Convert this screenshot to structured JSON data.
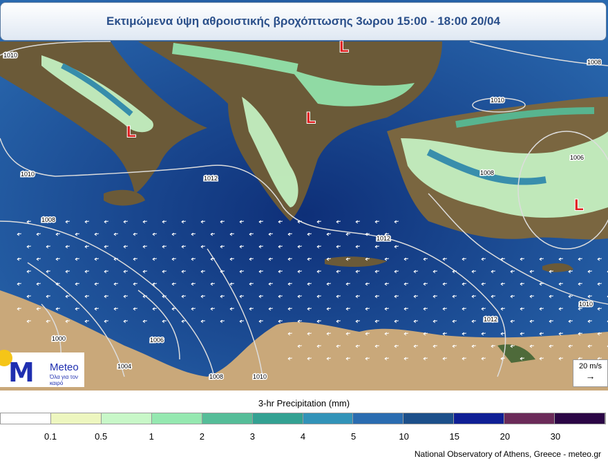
{
  "title": "Εκτιμώμενα ύψη αθροιστικής βροχόπτωσης 3ωρου 15:00 - 18:00 20/04",
  "isobars": [
    {
      "label": "1010"
    },
    {
      "label": "1008"
    },
    {
      "label": "1010"
    },
    {
      "label": "1006"
    },
    {
      "label": "1008"
    },
    {
      "label": "1010"
    },
    {
      "label": "1012"
    },
    {
      "label": "1008"
    },
    {
      "label": "1012"
    },
    {
      "label": "1010"
    },
    {
      "label": "1012"
    },
    {
      "label": "1006"
    },
    {
      "label": "1000"
    },
    {
      "label": "1004"
    },
    {
      "label": "1008"
    },
    {
      "label": "1010"
    }
  ],
  "low_marker": "L",
  "logo": {
    "name": "Meteo",
    "tagline": "Όλα για τον καιρό"
  },
  "wind_scale": {
    "label": "20 m/s",
    "arrow": "→"
  },
  "legend": {
    "title": "3-hr Precipitation (mm)",
    "colors": [
      "#ffffff",
      "#edf6bf",
      "#c8f7c8",
      "#95e8b0",
      "#55bd98",
      "#33a192",
      "#3293b8",
      "#2a6cb0",
      "#1c4f8a",
      "#0f1f95",
      "#6a2a58",
      "#2b0645"
    ],
    "ticks": [
      "0.1",
      "0.5",
      "1",
      "2",
      "3",
      "4",
      "5",
      "10",
      "15",
      "20",
      "30"
    ]
  },
  "credit": "National Observatory of Athens, Greece - meteo.gr",
  "colors": {
    "sea": "#1d4f96",
    "land": "#6b5a38",
    "desert": "#c9a87a",
    "title_text": "#2a4f8a",
    "low": "#e02020"
  }
}
